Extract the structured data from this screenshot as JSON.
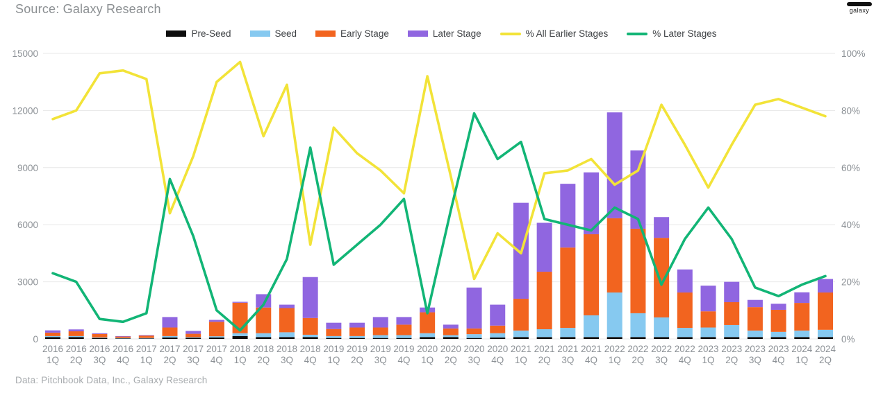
{
  "header": {
    "source_label": "Source: Galaxy Research",
    "logo_text": "galaxy"
  },
  "footer": {
    "credit": "Data: Pitchbook Data, Inc., Galaxy Research"
  },
  "colors": {
    "pre_seed": "#0d0d0d",
    "seed": "#86c9f0",
    "early_stage": "#f2641f",
    "later_stage": "#9066e0",
    "pct_all_earlier": "#f2e338",
    "pct_later": "#12b576",
    "grid": "#e7e7e7",
    "axis_text": "#8c9196"
  },
  "legend": {
    "items": [
      {
        "label": "Pre-Seed",
        "color": "#0d0d0d",
        "kind": "bar"
      },
      {
        "label": "Seed",
        "color": "#86c9f0",
        "kind": "bar"
      },
      {
        "label": "Early Stage",
        "color": "#f2641f",
        "kind": "bar"
      },
      {
        "label": "Later Stage",
        "color": "#9066e0",
        "kind": "bar"
      },
      {
        "label": "% All Earlier Stages",
        "color": "#f2e338",
        "kind": "line"
      },
      {
        "label": "% Later Stages",
        "color": "#12b576",
        "kind": "line"
      }
    ]
  },
  "chart_data": {
    "type": "bar",
    "subtype": "stacked-bars-with-percent-lines",
    "title": "Source: Galaxy Research",
    "xlabel": "",
    "ylabel": "",
    "grid": true,
    "legend_position": "top",
    "categories": [
      "2016 1Q",
      "2016 2Q",
      "2016 3Q",
      "2016 4Q",
      "2017 1Q",
      "2017 2Q",
      "2017 3Q",
      "2017 4Q",
      "2018 1Q",
      "2018 2Q",
      "2018 3Q",
      "2018 4Q",
      "2019 1Q",
      "2019 2Q",
      "2019 3Q",
      "2019 4Q",
      "2020 1Q",
      "2020 2Q",
      "2020 3Q",
      "2020 4Q",
      "2021 1Q",
      "2021 2Q",
      "2021 3Q",
      "2021 4Q",
      "2022 1Q",
      "2022 2Q",
      "2022 3Q",
      "2022 4Q",
      "2023 1Q",
      "2023 2Q",
      "2023 3Q",
      "2023 4Q",
      "2024 1Q",
      "2024 2Q"
    ],
    "left_axis": {
      "max": 15000,
      "ticks": [
        0,
        3000,
        6000,
        9000,
        12000,
        15000
      ]
    },
    "right_axis": {
      "max": 100,
      "ticks": [
        "0%",
        "20%",
        "40%",
        "60%",
        "80%",
        "100%"
      ]
    },
    "series": [
      {
        "name": "Pre-Seed",
        "type": "bar-stack",
        "color": "#0d0d0d",
        "values": [
          100,
          100,
          50,
          30,
          30,
          80,
          60,
          80,
          150,
          100,
          100,
          100,
          50,
          50,
          50,
          50,
          100,
          100,
          50,
          80,
          100,
          100,
          100,
          100,
          100,
          100,
          100,
          100,
          100,
          100,
          100,
          100,
          100,
          100
        ]
      },
      {
        "name": "Seed",
        "type": "bar-stack",
        "color": "#86c9f0",
        "values": [
          50,
          50,
          30,
          20,
          20,
          70,
          30,
          60,
          150,
          200,
          250,
          120,
          100,
          100,
          150,
          150,
          200,
          100,
          200,
          220,
          340,
          410,
          480,
          1140,
          2340,
          1250,
          1030,
          480,
          500,
          630,
          340,
          270,
          340,
          380
        ]
      },
      {
        "name": "Early Stage",
        "type": "bar-stack",
        "color": "#f2641f",
        "values": [
          180,
          250,
          180,
          80,
          130,
          450,
          180,
          760,
          1600,
          1350,
          1270,
          880,
          370,
          450,
          400,
          550,
          1100,
          350,
          300,
          400,
          1670,
          3020,
          4220,
          4260,
          3900,
          4440,
          4180,
          1860,
          850,
          1200,
          1230,
          1160,
          1450,
          1960
        ]
      },
      {
        "name": "Later Stage",
        "type": "bar-stack",
        "color": "#9066e0",
        "values": [
          120,
          100,
          40,
          20,
          20,
          550,
          150,
          100,
          50,
          700,
          180,
          2150,
          330,
          250,
          550,
          400,
          250,
          200,
          2150,
          1100,
          5040,
          2570,
          3350,
          3250,
          5560,
          4110,
          1090,
          1210,
          1350,
          1070,
          380,
          320,
          560,
          710
        ]
      },
      {
        "name": "% All Earlier Stages",
        "type": "line",
        "axis": "right",
        "color": "#f2e338",
        "values": [
          77,
          80,
          93,
          94,
          91,
          44,
          64,
          90,
          97,
          71,
          89,
          33,
          74,
          65,
          59,
          51,
          92,
          57,
          21,
          37,
          30,
          58,
          59,
          63,
          54,
          59,
          82,
          68,
          53,
          68,
          82,
          84,
          81,
          78
        ]
      },
      {
        "name": "% Later Stages",
        "type": "line",
        "axis": "right",
        "color": "#12b576",
        "values": [
          23,
          20,
          7,
          6,
          9,
          56,
          36,
          10,
          3,
          12,
          28,
          67,
          26,
          33,
          40,
          49,
          9,
          45,
          79,
          63,
          69,
          42,
          40,
          38,
          46,
          42,
          19,
          35,
          46,
          35,
          18,
          15,
          19,
          22
        ]
      }
    ]
  }
}
